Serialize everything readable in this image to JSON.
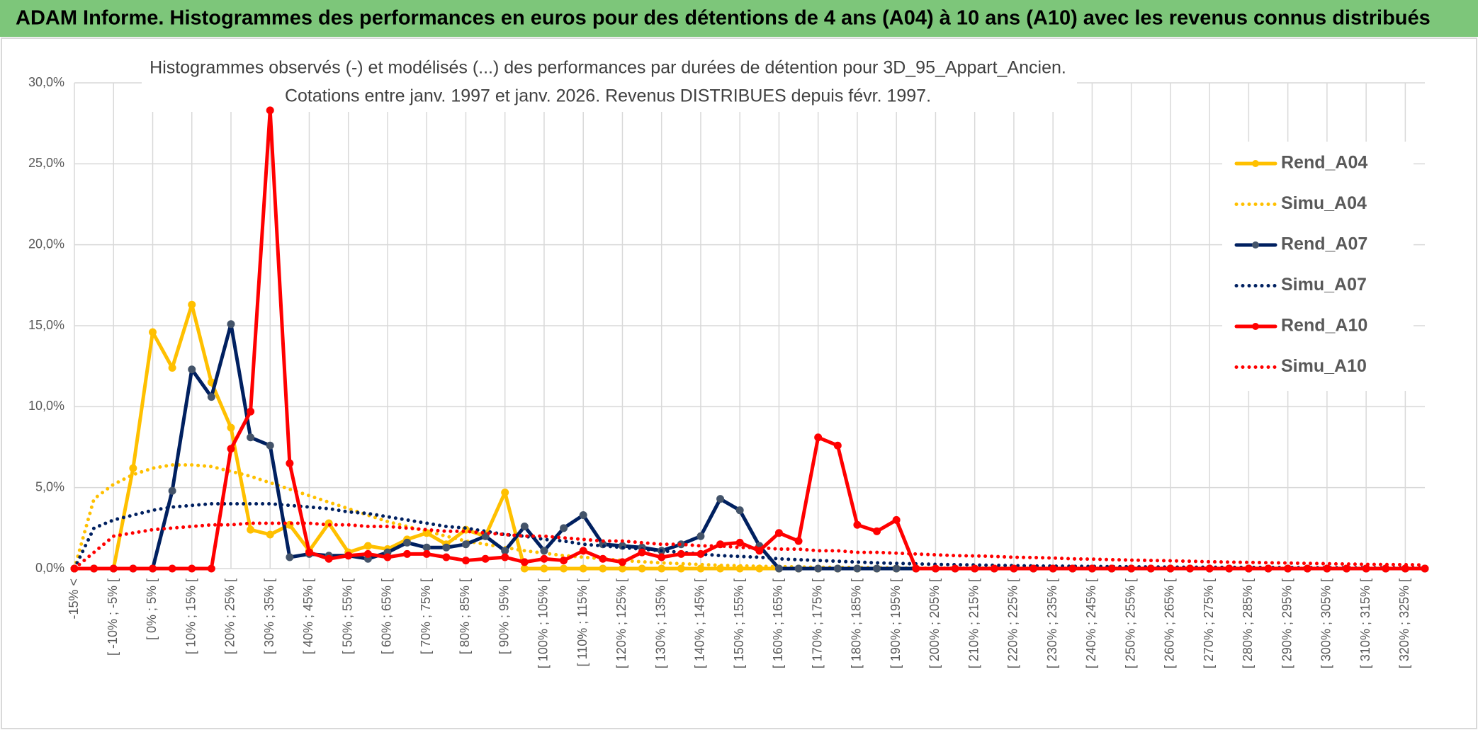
{
  "chart_data": {
    "type": "line",
    "title": "ADAM Informe. Histogrammes des performances en euros pour des détentions de 4 ans (A04) à 10 ans (A10) avec les revenus connus distribués",
    "subtitle": [
      "Histogrammes observés (-) et modélisés (...) des performances par durées de détention pour 3D_95_Appart_Ancien.",
      "Cotations entre janv. 1997 et janv. 2026. Revenus DISTRIBUES depuis févr. 1997."
    ],
    "categories": [
      "-15% <",
      null,
      "[ -10% ; -5% [",
      null,
      "[ 0% ; 5% [",
      null,
      "[ 10% ; 15% [",
      null,
      "[ 20% ; 25% [",
      null,
      "[ 30% ; 35% [",
      null,
      "[ 40% ; 45% [",
      null,
      "[ 50% ; 55% [",
      null,
      "[ 60% ; 65% [",
      null,
      "[ 70% ; 75% [",
      null,
      "[ 80% ; 85% [",
      null,
      "[ 90% ; 95% [",
      null,
      "[ 100% ; 105% [",
      null,
      "[ 110% ; 115% [",
      null,
      "[ 120% ; 125% [",
      null,
      "[ 130% ; 135% [",
      null,
      "[ 140% ; 145% [",
      null,
      "[ 150% ; 155% [",
      null,
      "[ 160% ; 165% [",
      null,
      "[ 170% ; 175% [",
      null,
      "[ 180% ; 185% [",
      null,
      "[ 190% ; 195% [",
      null,
      "[ 200% ; 205% [",
      null,
      "[ 210% ; 215% [",
      null,
      "[ 220% ; 225% [",
      null,
      "[ 230% ; 235% [",
      null,
      "[ 240% ; 245% [",
      null,
      "[ 250% ; 255% [",
      null,
      "[ 260% ; 265% [",
      null,
      "[ 270% ; 275% [",
      null,
      "[ 280% ; 285% [",
      null,
      "[ 290% ; 295% [",
      null,
      "[ 300% ; 305% [",
      null,
      "[ 310% ; 315% [",
      null,
      "[ 320% ; 325% [",
      null
    ],
    "series": [
      {
        "name": "Rend_A04",
        "color": "#ffc000",
        "line_style": "solid",
        "markers": true,
        "marker_color": "#ffc000",
        "values": [
          0,
          0,
          0,
          6.2,
          14.6,
          12.4,
          16.3,
          11.5,
          8.7,
          2.4,
          2.1,
          2.7,
          1.1,
          2.8,
          1.0,
          1.4,
          1.2,
          1.8,
          2.2,
          1.5,
          2.4,
          2.0,
          4.7,
          0,
          0,
          0,
          0,
          0,
          0,
          0,
          0,
          0,
          0,
          0,
          0,
          0,
          0,
          0,
          0,
          0,
          0,
          0,
          0,
          0,
          0,
          0,
          0,
          0,
          0,
          0,
          0,
          0,
          0,
          0,
          0,
          0,
          0,
          0,
          0,
          0,
          0,
          0,
          0,
          0,
          0,
          0,
          0,
          0,
          0,
          0
        ]
      },
      {
        "name": "Simu_A04",
        "color": "#ffc000",
        "line_style": "dotted",
        "markers": false,
        "values": [
          0,
          4.3,
          5.2,
          5.8,
          6.2,
          6.4,
          6.4,
          6.3,
          6.0,
          5.7,
          5.3,
          4.9,
          4.5,
          4.1,
          3.7,
          3.3,
          2.9,
          2.6,
          2.3,
          2.0,
          1.7,
          1.5,
          1.3,
          1.1,
          0.95,
          0.8,
          0.7,
          0.6,
          0.5,
          0.42,
          0.35,
          0.3,
          0.25,
          0.2,
          0.17,
          0.14,
          0.12,
          0.1,
          0.08,
          0.07,
          0.06,
          0.05,
          0.04,
          0.03,
          0.03,
          0.02,
          0.02,
          0.02,
          0.01,
          0.01,
          0.01,
          0.01,
          0.01,
          0.01,
          0.01,
          0.01,
          0.01,
          0.01,
          0.01,
          0.01,
          0.01,
          0.01,
          0.01,
          0.01,
          0.01,
          0.01,
          0.01,
          0.01,
          0.01,
          0.01
        ]
      },
      {
        "name": "Rend_A07",
        "color": "#002060",
        "line_style": "solid",
        "markers": true,
        "marker_color": "#44546a",
        "values": [
          0,
          0,
          0,
          0,
          0,
          4.8,
          12.3,
          10.6,
          15.1,
          8.1,
          7.6,
          0.7,
          0.9,
          0.8,
          0.8,
          0.6,
          1.0,
          1.6,
          1.3,
          1.3,
          1.5,
          2.0,
          1.1,
          2.6,
          1.1,
          2.5,
          3.3,
          1.5,
          1.4,
          1.3,
          1.1,
          1.5,
          2.0,
          4.3,
          3.6,
          1.4,
          0,
          0,
          0,
          0,
          0,
          0,
          0,
          0,
          0,
          0,
          0,
          0,
          0,
          0,
          0,
          0,
          0,
          0,
          0,
          0,
          0,
          0,
          0,
          0,
          0,
          0,
          0,
          0,
          0,
          0,
          0,
          0,
          0,
          0
        ]
      },
      {
        "name": "Simu_A07",
        "color": "#002060",
        "line_style": "dotted",
        "markers": false,
        "values": [
          0,
          2.5,
          3.0,
          3.3,
          3.6,
          3.8,
          3.9,
          4.0,
          4.0,
          4.0,
          4.0,
          3.9,
          3.8,
          3.7,
          3.5,
          3.4,
          3.2,
          3.0,
          2.8,
          2.6,
          2.5,
          2.3,
          2.1,
          2.0,
          1.8,
          1.7,
          1.5,
          1.4,
          1.3,
          1.2,
          1.1,
          1.0,
          0.9,
          0.8,
          0.75,
          0.7,
          0.6,
          0.55,
          0.5,
          0.45,
          0.4,
          0.35,
          0.32,
          0.29,
          0.26,
          0.24,
          0.22,
          0.2,
          0.18,
          0.16,
          0.15,
          0.14,
          0.13,
          0.12,
          0.11,
          0.1,
          0.09,
          0.08,
          0.08,
          0.07,
          0.07,
          0.06,
          0.06,
          0.05,
          0.05,
          0.05,
          0.04,
          0.04,
          0.04,
          0.04
        ]
      },
      {
        "name": "Rend_A10",
        "color": "#ff0000",
        "line_style": "solid",
        "markers": true,
        "marker_color": "#ff0000",
        "values": [
          0,
          0,
          0,
          0,
          0,
          0,
          0,
          0,
          7.4,
          9.7,
          28.3,
          6.5,
          1.0,
          0.6,
          0.8,
          0.9,
          0.7,
          0.9,
          0.9,
          0.7,
          0.5,
          0.6,
          0.7,
          0.4,
          0.6,
          0.5,
          1.1,
          0.6,
          0.4,
          1.0,
          0.7,
          0.9,
          0.9,
          1.5,
          1.6,
          1.1,
          2.2,
          1.7,
          8.1,
          7.6,
          2.7,
          2.3,
          3.0,
          0,
          0,
          0,
          0,
          0,
          0,
          0,
          0,
          0,
          0,
          0,
          0,
          0,
          0,
          0,
          0,
          0,
          0,
          0,
          0,
          0,
          0,
          0,
          0,
          0,
          0,
          0
        ]
      },
      {
        "name": "Simu_A10",
        "color": "#ff0000",
        "line_style": "dotted",
        "markers": false,
        "values": [
          0,
          1.0,
          2.0,
          2.2,
          2.4,
          2.5,
          2.6,
          2.7,
          2.7,
          2.8,
          2.8,
          2.8,
          2.8,
          2.7,
          2.7,
          2.6,
          2.6,
          2.5,
          2.4,
          2.3,
          2.3,
          2.2,
          2.1,
          2.0,
          2.0,
          1.9,
          1.8,
          1.7,
          1.7,
          1.6,
          1.5,
          1.5,
          1.4,
          1.4,
          1.3,
          1.3,
          1.2,
          1.2,
          1.1,
          1.1,
          1.0,
          1.0,
          0.95,
          0.9,
          0.85,
          0.8,
          0.78,
          0.75,
          0.7,
          0.68,
          0.65,
          0.6,
          0.58,
          0.55,
          0.52,
          0.5,
          0.48,
          0.45,
          0.42,
          0.4,
          0.38,
          0.36,
          0.34,
          0.32,
          0.3,
          0.28,
          0.26,
          0.25,
          0.24,
          0.22
        ]
      }
    ],
    "ylim": [
      0,
      30
    ],
    "yticks": [
      {
        "value": 0,
        "label": "0,0%"
      },
      {
        "value": 5,
        "label": "5,0%"
      },
      {
        "value": 10,
        "label": "10,0%"
      },
      {
        "value": 15,
        "label": "15,0%"
      },
      {
        "value": 20,
        "label": "20,0%"
      },
      {
        "value": 25,
        "label": "25,0%"
      },
      {
        "value": 30,
        "label": "30,0%"
      }
    ],
    "grid": true,
    "legend": "right"
  }
}
